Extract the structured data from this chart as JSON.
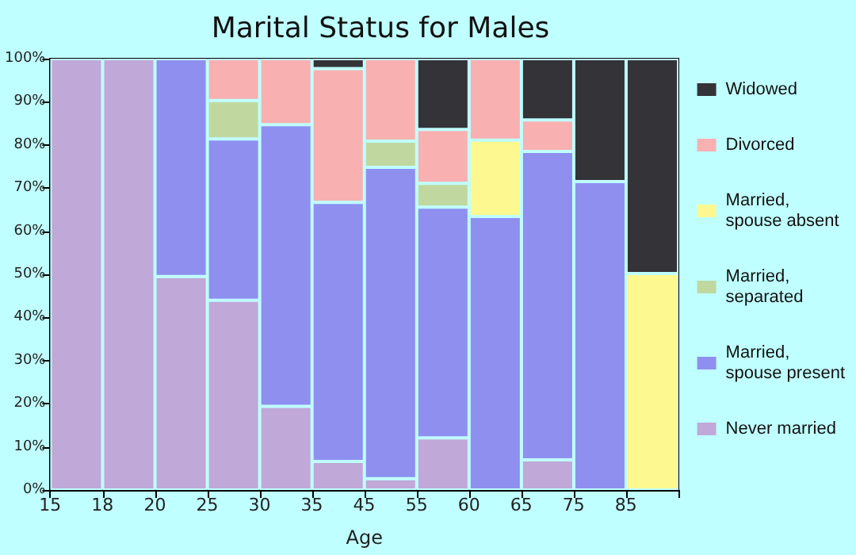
{
  "chart_data": {
    "type": "bar",
    "stacked": true,
    "title": "Marital Status for Males",
    "xlabel": "Age",
    "categories": [
      "15",
      "18",
      "20",
      "25",
      "30",
      "35",
      "45",
      "55",
      "60",
      "65",
      "75",
      "85"
    ],
    "ylim": [
      0,
      100
    ],
    "yticks": [
      {
        "value": 0,
        "label": "0%"
      },
      {
        "value": 10,
        "label": "10%"
      },
      {
        "value": 20,
        "label": "20%"
      },
      {
        "value": 30,
        "label": "30%"
      },
      {
        "value": 40,
        "label": "40%"
      },
      {
        "value": 50,
        "label": "50%"
      },
      {
        "value": 60,
        "label": "60%"
      },
      {
        "value": 70,
        "label": "70%"
      },
      {
        "value": 80,
        "label": "80%"
      },
      {
        "value": 90,
        "label": "90%"
      },
      {
        "value": 100,
        "label": "100%"
      }
    ],
    "legend": "right",
    "series": [
      {
        "name": "Never married",
        "color": "#c0a8d8",
        "values": [
          100,
          100,
          49.5,
          44,
          19.4,
          6.6,
          2.6,
          12.1,
          null,
          7,
          null,
          null
        ]
      },
      {
        "name": "Married, spouse present",
        "color": "#8f8ff0",
        "values": [
          null,
          null,
          50.5,
          37.4,
          65.3,
          60.1,
          72.2,
          53.5,
          63.4,
          71.5,
          71.5,
          null
        ]
      },
      {
        "name": "Married, separated",
        "color": "#c0d8a0",
        "values": [
          null,
          null,
          null,
          8.9,
          null,
          null,
          6.1,
          5.5,
          null,
          null,
          null,
          null
        ]
      },
      {
        "name": "Married, spouse absent",
        "color": "#fdf890",
        "values": [
          null,
          null,
          null,
          null,
          null,
          null,
          null,
          null,
          17.7,
          null,
          null,
          50.2
        ]
      },
      {
        "name": "Divorced",
        "color": "#f8b0b0",
        "values": [
          null,
          null,
          null,
          9.7,
          15.3,
          31,
          19.1,
          12.5,
          18.9,
          7.3,
          null,
          null
        ]
      },
      {
        "name": "Widowed",
        "color": "#333338",
        "values": [
          null,
          null,
          null,
          null,
          null,
          2.3,
          null,
          16.4,
          null,
          14.2,
          28.5,
          49.8
        ]
      }
    ]
  }
}
